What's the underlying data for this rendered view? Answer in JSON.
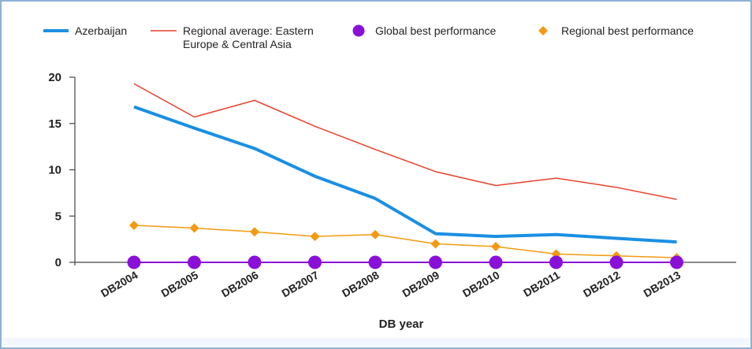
{
  "chart_data": {
    "type": "line",
    "title": "",
    "xlabel": "DB year",
    "ylabel": "",
    "categories": [
      "DB2004",
      "DB2005",
      "DB2006",
      "DB2007",
      "DB2008",
      "DB2009",
      "DB2010",
      "DB2011",
      "DB2012",
      "DB2013"
    ],
    "ylim": [
      0,
      20
    ],
    "yticks": [
      0,
      5,
      10,
      15,
      20
    ],
    "grid": false,
    "legend_position": "top",
    "series": [
      {
        "name": "Azerbaijan",
        "style": "line",
        "color": "#1a8fe3",
        "values": [
          16.8,
          14.5,
          12.3,
          9.3,
          6.9,
          3.1,
          2.8,
          3.0,
          2.6,
          2.2
        ]
      },
      {
        "name": "Regional average: Eastern Europe & Central Asia",
        "legend_lines": [
          "Regional average: Eastern",
          "Europe & Central Asia"
        ],
        "style": "line",
        "color": "#e8412c",
        "values": [
          19.3,
          15.7,
          17.5,
          14.7,
          12.2,
          9.8,
          8.3,
          9.1,
          8.1,
          6.8
        ]
      },
      {
        "name": "Global best performance",
        "style": "markers-circle",
        "color": "#8a10d8",
        "values": [
          0,
          0,
          0,
          0,
          0,
          0,
          0,
          0,
          0,
          0
        ]
      },
      {
        "name": "Regional best performance",
        "style": "line-diamond",
        "color": "#f39a12",
        "values": [
          4.0,
          3.7,
          3.3,
          2.8,
          3.0,
          2.0,
          1.7,
          0.9,
          0.7,
          0.5
        ]
      }
    ]
  }
}
